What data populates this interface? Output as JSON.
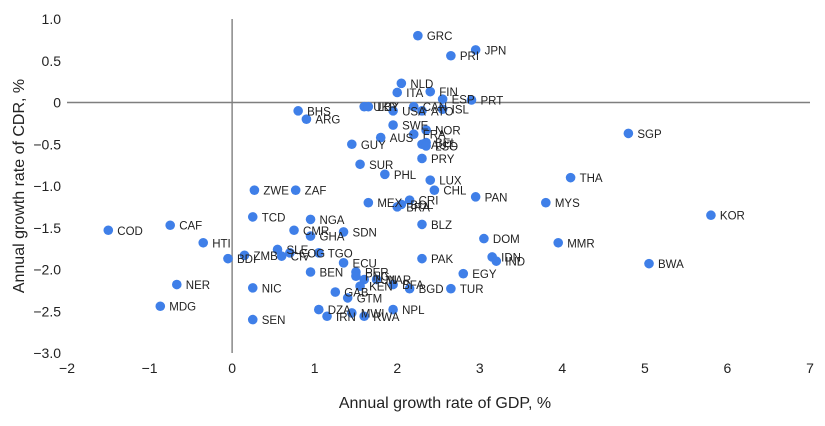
{
  "chart_data": {
    "type": "scatter",
    "title": "",
    "xlabel": "Annual growth rate of GDP, %",
    "ylabel": "Annual growth rate of CDR, %",
    "xlim": [
      -2,
      7
    ],
    "ylim": [
      -3.0,
      1.0
    ],
    "x_ticks": [
      -2,
      -1,
      0,
      1,
      2,
      3,
      4,
      5,
      6,
      7
    ],
    "y_ticks": [
      1.0,
      0.5,
      0,
      -0.5,
      -1.0,
      -1.5,
      -2.0,
      -2.5,
      -3.0
    ],
    "x_tick_labels": [
      "−2",
      "−1",
      "0",
      "1",
      "2",
      "3",
      "4",
      "5",
      "6",
      "7"
    ],
    "y_tick_labels": [
      "1.0",
      "0.5",
      "0",
      "−0.5",
      "−1.0",
      "−1.5",
      "−2.0",
      "−2.5",
      "−3.0"
    ],
    "point_color": "#3f7fe8",
    "axis_color": "#7f7f7f",
    "points": [
      {
        "label": "GRC",
        "x": 2.25,
        "y": 0.8
      },
      {
        "label": "JPN",
        "x": 2.95,
        "y": 0.63
      },
      {
        "label": "PRI",
        "x": 2.65,
        "y": 0.56
      },
      {
        "label": "NLD",
        "x": 2.05,
        "y": 0.23
      },
      {
        "label": "ITA",
        "x": 2.0,
        "y": 0.12
      },
      {
        "label": "FIN",
        "x": 2.4,
        "y": 0.13
      },
      {
        "label": "ESP",
        "x": 2.55,
        "y": 0.04
      },
      {
        "label": "PRT",
        "x": 2.9,
        "y": 0.03
      },
      {
        "label": "UKR",
        "x": 1.6,
        "y": -0.05
      },
      {
        "label": "LBY",
        "x": 1.65,
        "y": -0.05
      },
      {
        "label": "CAN",
        "x": 2.2,
        "y": -0.05
      },
      {
        "label": "ISL",
        "x": 2.55,
        "y": -0.08
      },
      {
        "label": "USA",
        "x": 1.95,
        "y": -0.1
      },
      {
        "label": "ATO",
        "x": 2.3,
        "y": -0.1
      },
      {
        "label": "BHS",
        "x": 0.8,
        "y": -0.1
      },
      {
        "label": "ARG",
        "x": 0.9,
        "y": -0.2
      },
      {
        "label": "SWE",
        "x": 1.95,
        "y": -0.27
      },
      {
        "label": "NOR",
        "x": 2.35,
        "y": -0.33
      },
      {
        "label": "FRA",
        "x": 2.2,
        "y": -0.38
      },
      {
        "label": "AUS",
        "x": 1.8,
        "y": -0.42
      },
      {
        "label": "BEL",
        "x": 2.35,
        "y": -0.48
      },
      {
        "label": "AUT",
        "x": 2.3,
        "y": -0.5
      },
      {
        "label": "LSO",
        "x": 2.35,
        "y": -0.52
      },
      {
        "label": "GUY",
        "x": 1.45,
        "y": -0.5
      },
      {
        "label": "SGP",
        "x": 4.8,
        "y": -0.37
      },
      {
        "label": "PRY",
        "x": 2.3,
        "y": -0.67
      },
      {
        "label": "SUR",
        "x": 1.55,
        "y": -0.74
      },
      {
        "label": "PHL",
        "x": 1.85,
        "y": -0.86
      },
      {
        "label": "LUX",
        "x": 2.4,
        "y": -0.93
      },
      {
        "label": "THA",
        "x": 4.1,
        "y": -0.9
      },
      {
        "label": "CHL",
        "x": 2.45,
        "y": -1.05
      },
      {
        "label": "ZWE",
        "x": 0.27,
        "y": -1.05
      },
      {
        "label": "ZAF",
        "x": 0.77,
        "y": -1.05
      },
      {
        "label": "PAN",
        "x": 2.95,
        "y": -1.13
      },
      {
        "label": "CRI",
        "x": 2.15,
        "y": -1.17
      },
      {
        "label": "MYS",
        "x": 3.8,
        "y": -1.2
      },
      {
        "label": "MEX",
        "x": 1.65,
        "y": -1.2
      },
      {
        "label": "BOL",
        "x": 2.05,
        "y": -1.22
      },
      {
        "label": "BRA",
        "x": 2.0,
        "y": -1.25
      },
      {
        "label": "KOR",
        "x": 5.8,
        "y": -1.35
      },
      {
        "label": "TCD",
        "x": 0.25,
        "y": -1.37
      },
      {
        "label": "NGA",
        "x": 0.95,
        "y": -1.4
      },
      {
        "label": "BLZ",
        "x": 2.3,
        "y": -1.46
      },
      {
        "label": "CAF",
        "x": -0.75,
        "y": -1.47
      },
      {
        "label": "COD",
        "x": -1.5,
        "y": -1.53
      },
      {
        "label": "CMR",
        "x": 0.75,
        "y": -1.53
      },
      {
        "label": "SDN",
        "x": 1.35,
        "y": -1.55
      },
      {
        "label": "GHA",
        "x": 0.95,
        "y": -1.6
      },
      {
        "label": "DOM",
        "x": 3.05,
        "y": -1.63
      },
      {
        "label": "HTI",
        "x": -0.35,
        "y": -1.68
      },
      {
        "label": "MMR",
        "x": 3.95,
        "y": -1.68
      },
      {
        "label": "SLE",
        "x": 0.55,
        "y": -1.76
      },
      {
        "label": "COG",
        "x": 0.7,
        "y": -1.8
      },
      {
        "label": "TGO",
        "x": 1.05,
        "y": -1.8
      },
      {
        "label": "ZMB",
        "x": 0.15,
        "y": -1.83
      },
      {
        "label": "CIV",
        "x": 0.6,
        "y": -1.84
      },
      {
        "label": "BDI",
        "x": -0.05,
        "y": -1.87
      },
      {
        "label": "PAK",
        "x": 2.3,
        "y": -1.87
      },
      {
        "label": "IDN",
        "x": 3.15,
        "y": -1.85
      },
      {
        "label": "IND",
        "x": 3.2,
        "y": -1.9
      },
      {
        "label": "ECU",
        "x": 1.35,
        "y": -1.92
      },
      {
        "label": "BWA",
        "x": 5.05,
        "y": -1.93
      },
      {
        "label": "BEN",
        "x": 0.95,
        "y": -2.03
      },
      {
        "label": "PER",
        "x": 1.5,
        "y": -2.03
      },
      {
        "label": "EGY",
        "x": 2.8,
        "y": -2.05
      },
      {
        "label": "PNG",
        "x": 1.5,
        "y": -2.08
      },
      {
        "label": "TUN",
        "x": 1.6,
        "y": -2.12
      },
      {
        "label": "MAR",
        "x": 1.75,
        "y": -2.12
      },
      {
        "label": "BFA",
        "x": 1.95,
        "y": -2.18
      },
      {
        "label": "NER",
        "x": -0.67,
        "y": -2.18
      },
      {
        "label": "KEN",
        "x": 1.55,
        "y": -2.2
      },
      {
        "label": "NIC",
        "x": 0.25,
        "y": -2.22
      },
      {
        "label": "BGD",
        "x": 2.15,
        "y": -2.23
      },
      {
        "label": "TUR",
        "x": 2.65,
        "y": -2.23
      },
      {
        "label": "GAB",
        "x": 1.25,
        "y": -2.27
      },
      {
        "label": "GTM",
        "x": 1.4,
        "y": -2.34
      },
      {
        "label": "MDG",
        "x": -0.87,
        "y": -2.44
      },
      {
        "label": "DZA",
        "x": 1.05,
        "y": -2.48
      },
      {
        "label": "MWI",
        "x": 1.45,
        "y": -2.52
      },
      {
        "label": "NPL",
        "x": 1.95,
        "y": -2.48
      },
      {
        "label": "IRN",
        "x": 1.15,
        "y": -2.56
      },
      {
        "label": "RWA",
        "x": 1.6,
        "y": -2.56
      },
      {
        "label": "SEN",
        "x": 0.25,
        "y": -2.6
      }
    ]
  }
}
